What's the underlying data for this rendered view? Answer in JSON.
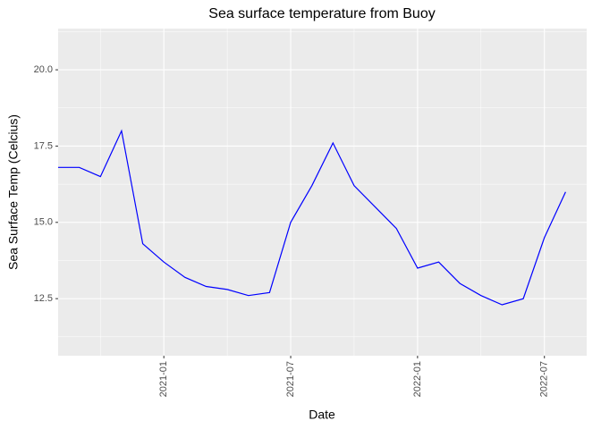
{
  "chart_data": {
    "type": "line",
    "title": "Sea surface temperature from Buoy",
    "x_label": "Date",
    "y_label": "Sea Surface Temp (Celcius)",
    "x": [
      "2020-08",
      "2020-09",
      "2020-10",
      "2020-11",
      "2020-12",
      "2021-01",
      "2021-02",
      "2021-03",
      "2021-04",
      "2021-05",
      "2021-06",
      "2021-07",
      "2021-08",
      "2021-09",
      "2021-10",
      "2021-11",
      "2021-12",
      "2022-01",
      "2022-02",
      "2022-03",
      "2022-04",
      "2022-05",
      "2022-06",
      "2022-07",
      "2022-08"
    ],
    "series": [
      {
        "name": "Sea surface temperature",
        "color": "#0000ff",
        "values": [
          16.8,
          16.8,
          16.5,
          18.0,
          14.3,
          13.7,
          13.2,
          12.9,
          12.8,
          12.6,
          12.7,
          15.0,
          16.2,
          17.6,
          16.2,
          15.5,
          14.8,
          13.5,
          13.7,
          13.0,
          12.6,
          12.3,
          12.5,
          14.5,
          16.0
        ]
      }
    ],
    "xlim": [
      "2020-08",
      "2022-09"
    ],
    "xticks": [
      "2021-01",
      "2021-07",
      "2022-01",
      "2022-07"
    ],
    "ylim": [
      10.63,
      21.35
    ],
    "yticks": [
      {
        "value": 12.5,
        "label": "12.5"
      },
      {
        "value": 15,
        "label": "15.0"
      },
      {
        "value": 17.5,
        "label": "17.5"
      },
      {
        "value": 20,
        "label": "20.0"
      }
    ],
    "grid": true,
    "minor_grid": true
  }
}
